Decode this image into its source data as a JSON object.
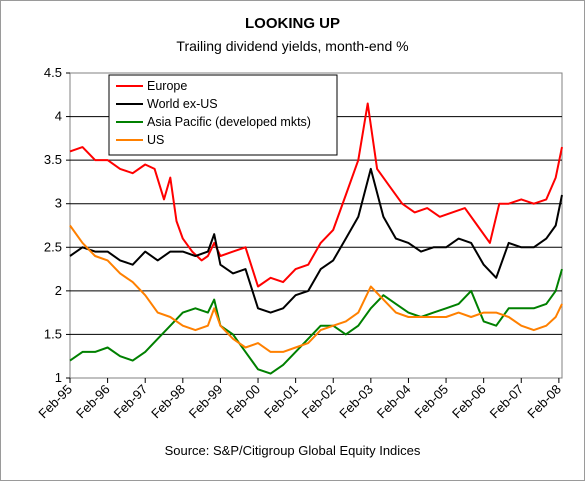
{
  "chart_data": {
    "type": "line",
    "title": "LOOKING UP",
    "subtitle": "Trailing dividend yields, month-end %",
    "source": "Source: S&P/Citigroup Global Equity Indices",
    "xlabel": "",
    "ylabel": "",
    "ylim": [
      1,
      4.5
    ],
    "yticks": [
      "1",
      "1.5",
      "2",
      "2.5",
      "3",
      "3.5",
      "4",
      "4.5"
    ],
    "x_tick_labels": [
      "Feb-95",
      "Feb-96",
      "Feb-97",
      "Feb-98",
      "Feb-99",
      "Feb-00",
      "Feb-01",
      "Feb-02",
      "Feb-03",
      "Feb-04",
      "Feb-05",
      "Feb-06",
      "Feb-07",
      "Feb-08"
    ],
    "x_start": "1995-02",
    "x_end": "2008-03",
    "grid": "horizontal",
    "legend_position": "top-left",
    "series": [
      {
        "name": "Europe",
        "color": "#ff0000",
        "points": [
          [
            "1995-02",
            3.6
          ],
          [
            "1995-06",
            3.65
          ],
          [
            "1995-10",
            3.5
          ],
          [
            "1996-02",
            3.5
          ],
          [
            "1996-06",
            3.4
          ],
          [
            "1996-10",
            3.35
          ],
          [
            "1997-02",
            3.45
          ],
          [
            "1997-05",
            3.4
          ],
          [
            "1997-08",
            3.05
          ],
          [
            "1997-10",
            3.3
          ],
          [
            "1997-12",
            2.8
          ],
          [
            "1998-02",
            2.6
          ],
          [
            "1998-05",
            2.45
          ],
          [
            "1998-08",
            2.35
          ],
          [
            "1998-10",
            2.4
          ],
          [
            "1998-12",
            2.55
          ],
          [
            "1999-02",
            2.4
          ],
          [
            "1999-06",
            2.45
          ],
          [
            "1999-10",
            2.5
          ],
          [
            "2000-02",
            2.05
          ],
          [
            "2000-06",
            2.15
          ],
          [
            "2000-10",
            2.1
          ],
          [
            "2001-02",
            2.25
          ],
          [
            "2001-06",
            2.3
          ],
          [
            "2001-10",
            2.55
          ],
          [
            "2002-02",
            2.7
          ],
          [
            "2002-06",
            3.1
          ],
          [
            "2002-10",
            3.5
          ],
          [
            "2003-01",
            4.15
          ],
          [
            "2003-04",
            3.4
          ],
          [
            "2003-08",
            3.2
          ],
          [
            "2003-12",
            3.0
          ],
          [
            "2004-04",
            2.9
          ],
          [
            "2004-08",
            2.95
          ],
          [
            "2004-12",
            2.85
          ],
          [
            "2005-04",
            2.9
          ],
          [
            "2005-08",
            2.95
          ],
          [
            "2005-12",
            2.75
          ],
          [
            "2006-04",
            2.55
          ],
          [
            "2006-07",
            3.0
          ],
          [
            "2006-10",
            3.0
          ],
          [
            "2007-02",
            3.05
          ],
          [
            "2007-06",
            3.0
          ],
          [
            "2007-10",
            3.05
          ],
          [
            "2008-01",
            3.3
          ],
          [
            "2008-03",
            3.65
          ]
        ]
      },
      {
        "name": "World ex-US",
        "color": "#000000",
        "points": [
          [
            "1995-02",
            2.4
          ],
          [
            "1995-06",
            2.5
          ],
          [
            "1995-10",
            2.45
          ],
          [
            "1996-02",
            2.45
          ],
          [
            "1996-06",
            2.35
          ],
          [
            "1996-10",
            2.3
          ],
          [
            "1997-02",
            2.45
          ],
          [
            "1997-06",
            2.35
          ],
          [
            "1997-10",
            2.45
          ],
          [
            "1998-02",
            2.45
          ],
          [
            "1998-06",
            2.4
          ],
          [
            "1998-10",
            2.45
          ],
          [
            "1998-12",
            2.65
          ],
          [
            "1999-02",
            2.3
          ],
          [
            "1999-06",
            2.2
          ],
          [
            "1999-10",
            2.25
          ],
          [
            "2000-02",
            1.8
          ],
          [
            "2000-06",
            1.75
          ],
          [
            "2000-10",
            1.8
          ],
          [
            "2001-02",
            1.95
          ],
          [
            "2001-06",
            2.0
          ],
          [
            "2001-10",
            2.25
          ],
          [
            "2002-02",
            2.35
          ],
          [
            "2002-06",
            2.6
          ],
          [
            "2002-10",
            2.85
          ],
          [
            "2003-02",
            3.4
          ],
          [
            "2003-06",
            2.85
          ],
          [
            "2003-10",
            2.6
          ],
          [
            "2004-02",
            2.55
          ],
          [
            "2004-06",
            2.45
          ],
          [
            "2004-10",
            2.5
          ],
          [
            "2005-02",
            2.5
          ],
          [
            "2005-06",
            2.6
          ],
          [
            "2005-10",
            2.55
          ],
          [
            "2006-02",
            2.3
          ],
          [
            "2006-06",
            2.15
          ],
          [
            "2006-10",
            2.55
          ],
          [
            "2007-02",
            2.5
          ],
          [
            "2007-06",
            2.5
          ],
          [
            "2007-10",
            2.6
          ],
          [
            "2008-01",
            2.75
          ],
          [
            "2008-03",
            3.1
          ]
        ]
      },
      {
        "name": "Asia Pacific (developed mkts)",
        "color": "#008000",
        "points": [
          [
            "1995-02",
            1.2
          ],
          [
            "1995-06",
            1.3
          ],
          [
            "1995-10",
            1.3
          ],
          [
            "1996-02",
            1.35
          ],
          [
            "1996-06",
            1.25
          ],
          [
            "1996-10",
            1.2
          ],
          [
            "1997-02",
            1.3
          ],
          [
            "1997-06",
            1.45
          ],
          [
            "1997-10",
            1.6
          ],
          [
            "1998-02",
            1.75
          ],
          [
            "1998-06",
            1.8
          ],
          [
            "1998-10",
            1.75
          ],
          [
            "1998-12",
            1.9
          ],
          [
            "1999-02",
            1.6
          ],
          [
            "1999-06",
            1.5
          ],
          [
            "1999-10",
            1.3
          ],
          [
            "2000-02",
            1.1
          ],
          [
            "2000-06",
            1.05
          ],
          [
            "2000-10",
            1.15
          ],
          [
            "2001-02",
            1.3
          ],
          [
            "2001-06",
            1.45
          ],
          [
            "2001-10",
            1.6
          ],
          [
            "2002-02",
            1.6
          ],
          [
            "2002-06",
            1.5
          ],
          [
            "2002-10",
            1.6
          ],
          [
            "2003-02",
            1.8
          ],
          [
            "2003-06",
            1.95
          ],
          [
            "2003-10",
            1.85
          ],
          [
            "2004-02",
            1.75
          ],
          [
            "2004-06",
            1.7
          ],
          [
            "2004-10",
            1.75
          ],
          [
            "2005-02",
            1.8
          ],
          [
            "2005-06",
            1.85
          ],
          [
            "2005-10",
            2.0
          ],
          [
            "2006-02",
            1.65
          ],
          [
            "2006-06",
            1.6
          ],
          [
            "2006-10",
            1.8
          ],
          [
            "2007-02",
            1.8
          ],
          [
            "2007-06",
            1.8
          ],
          [
            "2007-10",
            1.85
          ],
          [
            "2008-01",
            2.0
          ],
          [
            "2008-03",
            2.25
          ]
        ]
      },
      {
        "name": "US",
        "color": "#ff8000",
        "points": [
          [
            "1995-02",
            2.75
          ],
          [
            "1995-06",
            2.55
          ],
          [
            "1995-10",
            2.4
          ],
          [
            "1996-02",
            2.35
          ],
          [
            "1996-06",
            2.2
          ],
          [
            "1996-10",
            2.1
          ],
          [
            "1997-02",
            1.95
          ],
          [
            "1997-06",
            1.75
          ],
          [
            "1997-10",
            1.7
          ],
          [
            "1998-02",
            1.6
          ],
          [
            "1998-06",
            1.55
          ],
          [
            "1998-10",
            1.6
          ],
          [
            "1998-12",
            1.8
          ],
          [
            "1999-02",
            1.6
          ],
          [
            "1999-06",
            1.45
          ],
          [
            "1999-10",
            1.35
          ],
          [
            "2000-02",
            1.4
          ],
          [
            "2000-06",
            1.3
          ],
          [
            "2000-10",
            1.3
          ],
          [
            "2001-02",
            1.35
          ],
          [
            "2001-06",
            1.4
          ],
          [
            "2001-10",
            1.55
          ],
          [
            "2002-02",
            1.6
          ],
          [
            "2002-06",
            1.65
          ],
          [
            "2002-10",
            1.75
          ],
          [
            "2003-02",
            2.05
          ],
          [
            "2003-06",
            1.9
          ],
          [
            "2003-10",
            1.75
          ],
          [
            "2004-02",
            1.7
          ],
          [
            "2004-06",
            1.7
          ],
          [
            "2004-10",
            1.7
          ],
          [
            "2005-02",
            1.7
          ],
          [
            "2005-06",
            1.75
          ],
          [
            "2005-10",
            1.7
          ],
          [
            "2006-02",
            1.75
          ],
          [
            "2006-06",
            1.75
          ],
          [
            "2006-10",
            1.7
          ],
          [
            "2007-02",
            1.6
          ],
          [
            "2007-06",
            1.55
          ],
          [
            "2007-10",
            1.6
          ],
          [
            "2008-01",
            1.7
          ],
          [
            "2008-03",
            1.85
          ]
        ]
      }
    ]
  }
}
